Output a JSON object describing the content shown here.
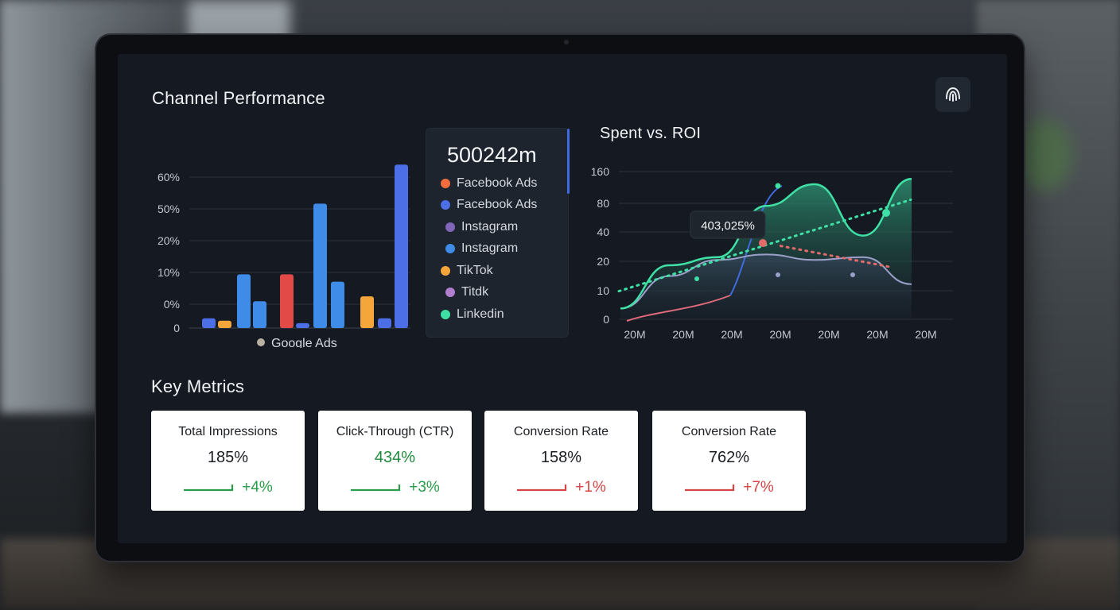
{
  "section_titles": {
    "channel_performance": "Channel Performance",
    "key_metrics": "Key Metrics"
  },
  "colors": {
    "screen_bg": "#151a22",
    "panel_bg": "#1e242d",
    "positive": "#2a9d4b",
    "negative": "#d64545",
    "blue": "#3f8be8",
    "indigo": "#4c6ee6",
    "red": "#e24a47",
    "orange": "#f4a63a",
    "teal": "#3fe0a5"
  },
  "corner_button": {
    "icon": "fingerprint-icon"
  },
  "chart_data": [
    {
      "type": "bar",
      "title": "",
      "y_ticks": [
        "60%",
        "50%",
        "20%",
        "10%",
        "0%",
        "0"
      ],
      "legend_note": "Google Ads",
      "series_values_percent": [
        4,
        3,
        22,
        11,
        22,
        2,
        51,
        19,
        13,
        4,
        67
      ],
      "series_colors": [
        "#4c6ee6",
        "#f4a63a",
        "#3f8be8",
        "#3f8be8",
        "#e24a47",
        "#4c6ee6",
        "#3f8be8",
        "#3f8be8",
        "#f4a63a",
        "#4c6ee6",
        "#4c6ee6"
      ]
    },
    {
      "type": "line",
      "title": "Spent vs. ROI",
      "y_ticks": [
        "160",
        "80",
        "40",
        "20",
        "10",
        "0"
      ],
      "x_ticks": [
        "20M",
        "20M",
        "20M",
        "20M",
        "20M",
        "20M",
        "20M"
      ],
      "tooltip": "403,025%",
      "series": [
        {
          "name": "",
          "color": "#3fe0a5",
          "points": [
            [
              0,
              0.4
            ],
            [
              1,
              2
            ],
            [
              2,
              2.3
            ],
            [
              3,
              4.2
            ],
            [
              4,
              5.0
            ],
            [
              5,
              3.1
            ],
            [
              6,
              5.2
            ]
          ]
        },
        {
          "name": "",
          "color": "#9aa0c8",
          "points": [
            [
              0,
              0.4
            ],
            [
              1,
              1.6
            ],
            [
              2,
              2.2
            ],
            [
              3,
              2.4
            ],
            [
              4,
              2.2
            ],
            [
              5,
              2.3
            ],
            [
              6,
              1.3
            ]
          ]
        },
        {
          "name": "",
          "color": "#3fe0a5",
          "dashed": true,
          "points": [
            [
              0,
              1.1
            ],
            [
              6,
              4.4
            ]
          ]
        },
        {
          "name": "",
          "color": "#e26a6a",
          "dashed": true,
          "points": [
            [
              3.3,
              3.1
            ],
            [
              5.6,
              2.2
            ]
          ]
        }
      ]
    }
  ],
  "legend_panel": {
    "value": "500242m",
    "items": [
      {
        "label": "Facebook Ads",
        "color": "#f26d3d"
      },
      {
        "label": "Facebook Ads",
        "color": "#4c6ee6"
      },
      {
        "label": "Instagram",
        "color": "#7f66b8"
      },
      {
        "label": "Instagram",
        "color": "#3f8be8"
      },
      {
        "label": "TikTok",
        "color": "#f4a63a"
      },
      {
        "label": "Titdk",
        "color": "#b07fd0"
      },
      {
        "label": "Linkedin",
        "color": "#3fe0a5"
      }
    ]
  },
  "key_metrics": [
    {
      "label": "Total Impressions",
      "value": "185%",
      "delta": "+4%",
      "trend": "positive"
    },
    {
      "label": "Click-Through (CTR)",
      "value": "434%",
      "delta": "+3%",
      "trend": "positive"
    },
    {
      "label": "Conversion Rate",
      "value": "158%",
      "delta": "+1%",
      "trend": "negative"
    },
    {
      "label": "Conversion Rate",
      "value": "762%",
      "delta": "+7%",
      "trend": "negative"
    }
  ]
}
